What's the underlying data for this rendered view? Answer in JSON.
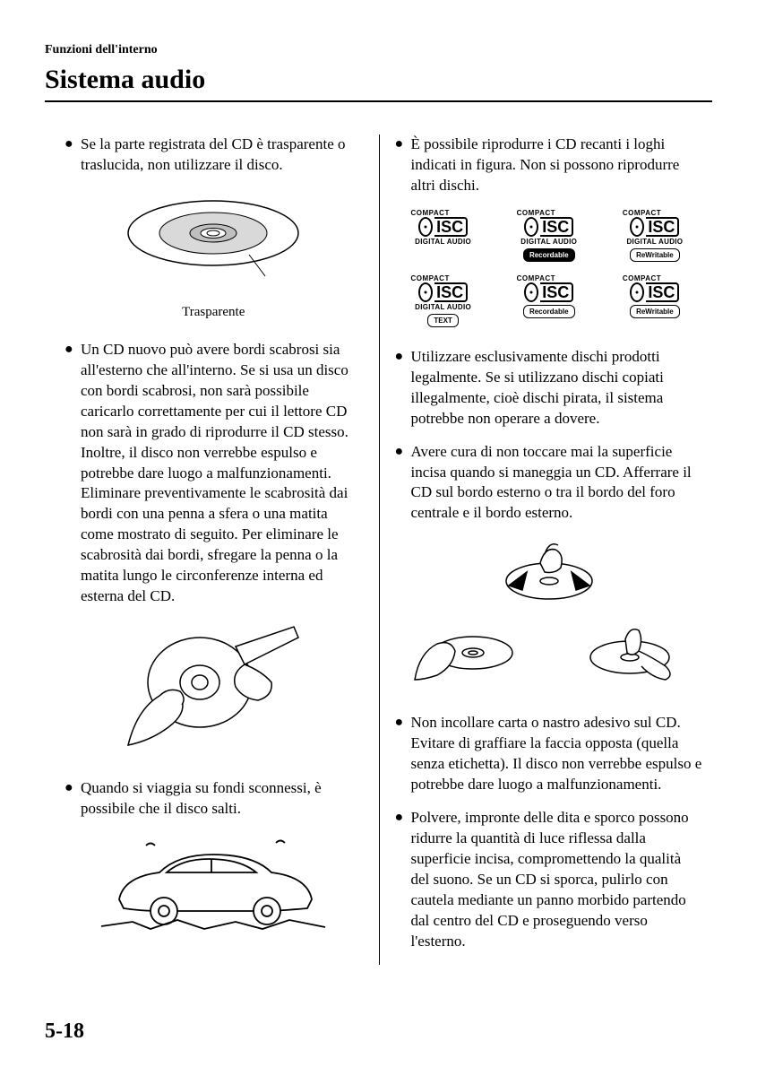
{
  "header": {
    "breadcrumb": "Funzioni dell'interno",
    "title": "Sistema audio"
  },
  "page_number": "5-18",
  "colors": {
    "text": "#000000",
    "background": "#ffffff",
    "rule": "#000000",
    "cd_fill": "#d9d9d9",
    "cd_inner_fill": "#bfbfbf"
  },
  "left_column": {
    "bullets": [
      "Se la parte registrata del CD è trasparente o traslucida, non utilizzare il disco.",
      "Un CD nuovo può avere bordi scabrosi sia all'esterno che all'interno. Se si usa un disco con bordi scabrosi, non sarà possibile caricarlo correttamente per cui il lettore CD non sarà in grado di riprodurre il CD stesso. Inoltre, il disco non verrebbe espulso e potrebbe dare luogo a malfunzionamenti. Eliminare preventivamente le scabrosità dai bordi con una penna a sfera o una matita come mostrato di seguito. Per eliminare le scabrosità dai bordi, sfregare la penna o la matita lungo le circonferenze interna ed esterna del CD.",
      "Quando si viaggia su fondi sconnessi, è possibile che il disco salti."
    ],
    "fig1_label": "Trasparente"
  },
  "right_column": {
    "bullets": [
      "È possibile riprodurre i CD recanti i loghi indicati in figura. Non si possono riprodurre altri dischi.",
      "Utilizzare esclusivamente dischi prodotti legalmente. Se si utilizzano dischi copiati illegalmente, cioè dischi pirata, il sistema potrebbe non operare a dovere.",
      "Avere cura di non toccare mai la superficie incisa quando si maneggia un CD. Afferrare il CD sul bordo esterno o tra il bordo del foro centrale e il bordo esterno.",
      "Non incollare carta o nastro adesivo sul CD. Evitare di graffiare la faccia opposta (quella senza etichetta). Il disco non verrebbe espulso e potrebbe dare luogo a malfunzionamenti.",
      "Polvere, impronte delle dita e sporco possono ridurre la quantità di luce riflessa dalla superficie incisa, compromettendo la qualità del suono. Se un CD si sporca, pulirlo con cautela mediante un panno morbido partendo dal centro del CD e proseguendo verso l'esterno."
    ],
    "logos": [
      {
        "compact": "COMPACT",
        "sub": "DIGITAL AUDIO",
        "pill": null,
        "pill_style": null
      },
      {
        "compact": "COMPACT",
        "sub": "DIGITAL AUDIO",
        "pill": "Recordable",
        "pill_style": "dark"
      },
      {
        "compact": "COMPACT",
        "sub": "DIGITAL AUDIO",
        "pill": "ReWritable",
        "pill_style": "light"
      },
      {
        "compact": "COMPACT",
        "sub": "DIGITAL AUDIO",
        "pill": "TEXT",
        "pill_style": "light"
      },
      {
        "compact": "COMPACT",
        "sub": "",
        "pill": "Recordable",
        "pill_style": "light"
      },
      {
        "compact": "COMPACT",
        "sub": "",
        "pill": "ReWritable",
        "pill_style": "light"
      }
    ]
  }
}
